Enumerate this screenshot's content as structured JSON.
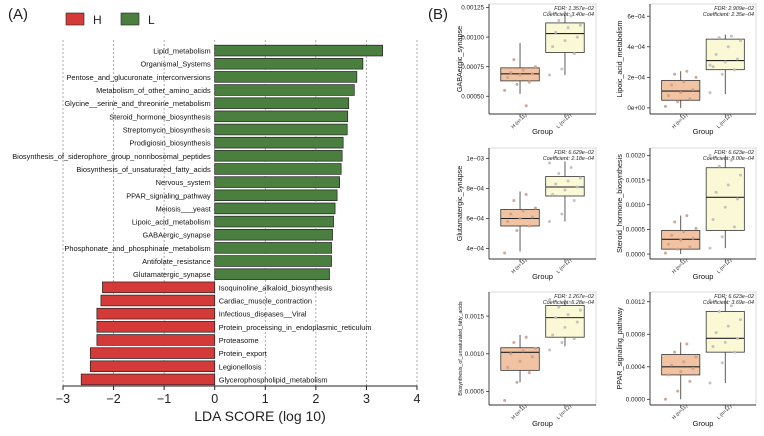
{
  "panels": {
    "a_label": "(A)",
    "b_label": "(B)"
  },
  "colors": {
    "H": "#d43a38",
    "L": "#4a7f3f",
    "box_H": "#f1c3a3",
    "box_L": "#fbf8d5",
    "point_H": "#c9a08a",
    "point_L": "#bdbdbd"
  },
  "chart_data": [
    {
      "type": "bar",
      "orientation": "horizontal",
      "title": "",
      "xlabel": "LDA SCORE (log 10)",
      "xlim": [
        -3,
        4
      ],
      "xticks": [
        -3,
        -2,
        -1,
        0,
        1,
        2,
        3,
        4
      ],
      "xtick_labels": [
        "−3",
        "−2",
        "−1",
        "0",
        "1",
        "2",
        "3",
        "4"
      ],
      "legend": {
        "position": "top-left",
        "entries": [
          {
            "label": "H",
            "group": "H"
          },
          {
            "label": "L",
            "group": "L"
          }
        ]
      },
      "categories": [
        "Lipid_metabolism",
        "Organismal_Systems",
        "Pentose_and_glucuronate_interconversions",
        "Metabolism_of_other_amino_acids",
        "Glycine__serine_and_threonine_metabolism",
        "Steroid_hormone_biosynthesis",
        "Streptomycin_biosynthesis",
        "Prodigiosin_biosynthesis",
        "Biosynthesis_of_siderophore_group_nonribosomal_peptides",
        "Biosynthesis_of_unsaturated_fatty_acids",
        "Nervous_system",
        "PPAR_signaling_pathway",
        "Meiosis___yeast",
        "Lipoic_acid_metabolism",
        "GABAergic_synapse",
        "Phosphonate_and_phosphinate_metabolism",
        "Antifolate_resistance",
        "Glutamatergic_synapse",
        "Isoquinoline_alkaloid_biosynthesis",
        "Cardiac_muscle_contraction",
        "Infectious_diseases__Viral",
        "Protein_processing_in_endoplasmic_reticulum",
        "Proteasome",
        "Protein_export",
        "Legionellosis",
        "Glycerophospholipid_metabolism"
      ],
      "values": [
        3.32,
        2.93,
        2.81,
        2.76,
        2.65,
        2.63,
        2.62,
        2.54,
        2.52,
        2.5,
        2.47,
        2.42,
        2.38,
        2.35,
        2.33,
        2.31,
        2.31,
        2.27,
        -2.22,
        -2.25,
        -2.33,
        -2.33,
        -2.33,
        -2.46,
        -2.46,
        -2.64
      ],
      "groups": [
        "L",
        "L",
        "L",
        "L",
        "L",
        "L",
        "L",
        "L",
        "L",
        "L",
        "L",
        "L",
        "L",
        "L",
        "L",
        "L",
        "L",
        "L",
        "H",
        "H",
        "H",
        "H",
        "H",
        "H",
        "H",
        "H"
      ]
    },
    {
      "type": "box",
      "ylabel": "GABAergic_synapse",
      "xlabel": "Group",
      "categories": [
        "H (n=11)",
        "L (n=12)"
      ],
      "fdr_text": "FDR: 1.357e−02",
      "coef_text": "Coefficient: 3.40e−04",
      "ylim": [
        0.00035,
        0.00128
      ],
      "yticks": [
        0.0005,
        0.00075,
        0.001,
        0.00125
      ],
      "ytick_labels": [
        "0.00050",
        "0.00075",
        "0.00100",
        "0.00125"
      ],
      "boxes": [
        {
          "whisker_low": 0.00052,
          "q1": 0.00063,
          "median": 0.00069,
          "q3": 0.00074,
          "whisker_high": 0.00095,
          "points": [
            0.00055,
            0.0006,
            0.00062,
            0.00066,
            0.00068,
            0.00069,
            0.0007,
            0.00072,
            0.00075,
            0.00081,
            0.00042
          ]
        },
        {
          "whisker_low": 0.00068,
          "q1": 0.00087,
          "median": 0.00103,
          "q3": 0.00112,
          "whisker_high": 0.00122,
          "points": [
            0.00068,
            0.00073,
            0.00086,
            0.00092,
            0.00097,
            0.001,
            0.00104,
            0.00108,
            0.0011,
            0.00114,
            0.00118,
            0.00121
          ]
        }
      ]
    },
    {
      "type": "box",
      "ylabel": "Lipoic_acid_metabolism",
      "xlabel": "Group",
      "categories": [
        "H (n=11)",
        "L (n=12)"
      ],
      "fdr_text": "FDR: 2.909e−02",
      "coef_text": "Coefficient: 2.35e−04",
      "ylim": [
        -4e-05,
        0.00068
      ],
      "yticks": [
        0,
        0.0002,
        0.0004,
        0.0006
      ],
      "ytick_labels": [
        "0e+00",
        "2e−04",
        "4e−04",
        "6e−04"
      ],
      "boxes": [
        {
          "whisker_low": 0.0,
          "q1": 5e-05,
          "median": 0.00011,
          "q3": 0.00018,
          "whisker_high": 0.00024,
          "points": [
            1e-05,
            4e-05,
            6e-05,
            8e-05,
            0.0001,
            0.00012,
            0.00015,
            0.00017,
            0.0002,
            0.00022,
            0.00024
          ]
        },
        {
          "whisker_low": 9e-05,
          "q1": 0.00025,
          "median": 0.00031,
          "q3": 0.00045,
          "whisker_high": 0.00048,
          "points": [
            0.0001,
            0.00022,
            0.00025,
            0.00027,
            0.0003,
            0.00032,
            0.00035,
            0.0004,
            0.00044,
            0.00046,
            0.00047,
            0.00028
          ]
        }
      ]
    },
    {
      "type": "box",
      "ylabel": "Glutamatergic_synapse",
      "xlabel": "Group",
      "categories": [
        "H (n=11)",
        "L (n=12)"
      ],
      "fdr_text": "FDR: 6.629e−02",
      "coef_text": "Coefficient: 2.18e−04",
      "ylim": [
        0.00033,
        0.00107
      ],
      "yticks": [
        0.0004,
        0.0006,
        0.0008,
        0.001
      ],
      "ytick_labels": [
        "4e−04",
        "6e−04",
        "8e−04",
        "1e−03"
      ],
      "boxes": [
        {
          "whisker_low": 0.00038,
          "q1": 0.00055,
          "median": 0.0006,
          "q3": 0.00066,
          "whisker_high": 0.00078,
          "points": [
            0.00037,
            0.00052,
            0.00055,
            0.00058,
            0.0006,
            0.00061,
            0.00063,
            0.00065,
            0.00067,
            0.00072,
            0.00076
          ]
        },
        {
          "whisker_low": 0.00058,
          "q1": 0.00075,
          "median": 0.00081,
          "q3": 0.00088,
          "whisker_high": 0.00098,
          "points": [
            0.00058,
            0.00063,
            0.00072,
            0.00076,
            0.00079,
            0.00081,
            0.00083,
            0.00085,
            0.00087,
            0.0009,
            0.00094,
            0.00097
          ]
        }
      ]
    },
    {
      "type": "box",
      "ylabel": "Steroid_hormone_biosynthesis",
      "xlabel": "Group",
      "categories": [
        "H (n=11)",
        "L (n=12)"
      ],
      "fdr_text": "FDR: 6.623e−02",
      "coef_text": "Coefficient: 8.00e−04",
      "ylim": [
        -0.0001,
        0.00215
      ],
      "yticks": [
        0,
        0.0005,
        0.001,
        0.0015,
        0.002
      ],
      "ytick_labels": [
        "0.0000",
        "0.0005",
        "0.0010",
        "0.0015",
        "0.0020"
      ],
      "boxes": [
        {
          "whisker_low": 0.0,
          "q1": 0.0001,
          "median": 0.0003,
          "q3": 0.00048,
          "whisker_high": 0.00078,
          "points": [
            2e-05,
            0.0001,
            0.00015,
            0.0002,
            0.00028,
            0.00032,
            0.00038,
            0.00045,
            0.00052,
            0.00065,
            0.00078
          ]
        },
        {
          "whisker_low": 0.00012,
          "q1": 0.00048,
          "median": 0.00115,
          "q3": 0.00175,
          "whisker_high": 0.002,
          "points": [
            0.00012,
            0.00035,
            0.00055,
            0.0007,
            0.00095,
            0.00112,
            0.00125,
            0.0014,
            0.0016,
            0.00178,
            0.0019,
            0.002
          ]
        }
      ]
    },
    {
      "type": "box",
      "ylabel": "Biosynthesis_of_unsaturated_fatty_acids",
      "xlabel": "Group",
      "categories": [
        "H (n=11)",
        "L (n=12)"
      ],
      "fdr_text": "FDR: 1.267e−02",
      "coef_text": "Coefficient: 5.28e−04",
      "ylim": [
        0.00032,
        0.00182
      ],
      "yticks": [
        0.0005,
        0.001,
        0.0015
      ],
      "ytick_labels": [
        "0.0005",
        "0.0010",
        "0.0015"
      ],
      "boxes": [
        {
          "whisker_low": 0.00062,
          "q1": 0.00078,
          "median": 0.00102,
          "q3": 0.00108,
          "whisker_high": 0.00125,
          "points": [
            0.00038,
            0.00062,
            0.00075,
            0.00082,
            0.0009,
            0.00096,
            0.001,
            0.00104,
            0.00107,
            0.00115,
            0.00122
          ]
        },
        {
          "whisker_low": 0.0011,
          "q1": 0.00122,
          "median": 0.00148,
          "q3": 0.00164,
          "whisker_high": 0.00172,
          "points": [
            0.00105,
            0.00115,
            0.0012,
            0.00125,
            0.00135,
            0.00142,
            0.00148,
            0.00152,
            0.00158,
            0.00162,
            0.00168,
            0.00172
          ]
        }
      ]
    },
    {
      "type": "box",
      "ylabel": "PPAR_signaling_pathway",
      "xlabel": "Group",
      "categories": [
        "H (n=11)",
        "L (n=12)"
      ],
      "fdr_text": "FDR: 6.623e−02",
      "coef_text": "Coefficient: 3.69e−04",
      "ylim": [
        -7e-05,
        0.00132
      ],
      "yticks": [
        0,
        0.0004,
        0.0008,
        0.0012
      ],
      "ytick_labels": [
        "0.0000",
        "0.0004",
        "0.0008",
        "0.0012"
      ],
      "boxes": [
        {
          "whisker_low": 0.0,
          "q1": 0.0003,
          "median": 0.0004,
          "q3": 0.00055,
          "whisker_high": 0.0007,
          "points": [
            0.0,
            0.0001,
            0.00022,
            0.0003,
            0.00034,
            0.00038,
            0.00042,
            0.00046,
            0.00052,
            0.00058,
            0.00068
          ]
        },
        {
          "whisker_low": 0.0002,
          "q1": 0.00058,
          "median": 0.00075,
          "q3": 0.00108,
          "whisker_high": 0.00125,
          "points": [
            0.0002,
            0.00045,
            0.00058,
            0.00065,
            0.0007,
            0.00075,
            0.00082,
            0.0009,
            0.00098,
            0.00108,
            0.00115,
            0.00122
          ]
        }
      ]
    }
  ]
}
